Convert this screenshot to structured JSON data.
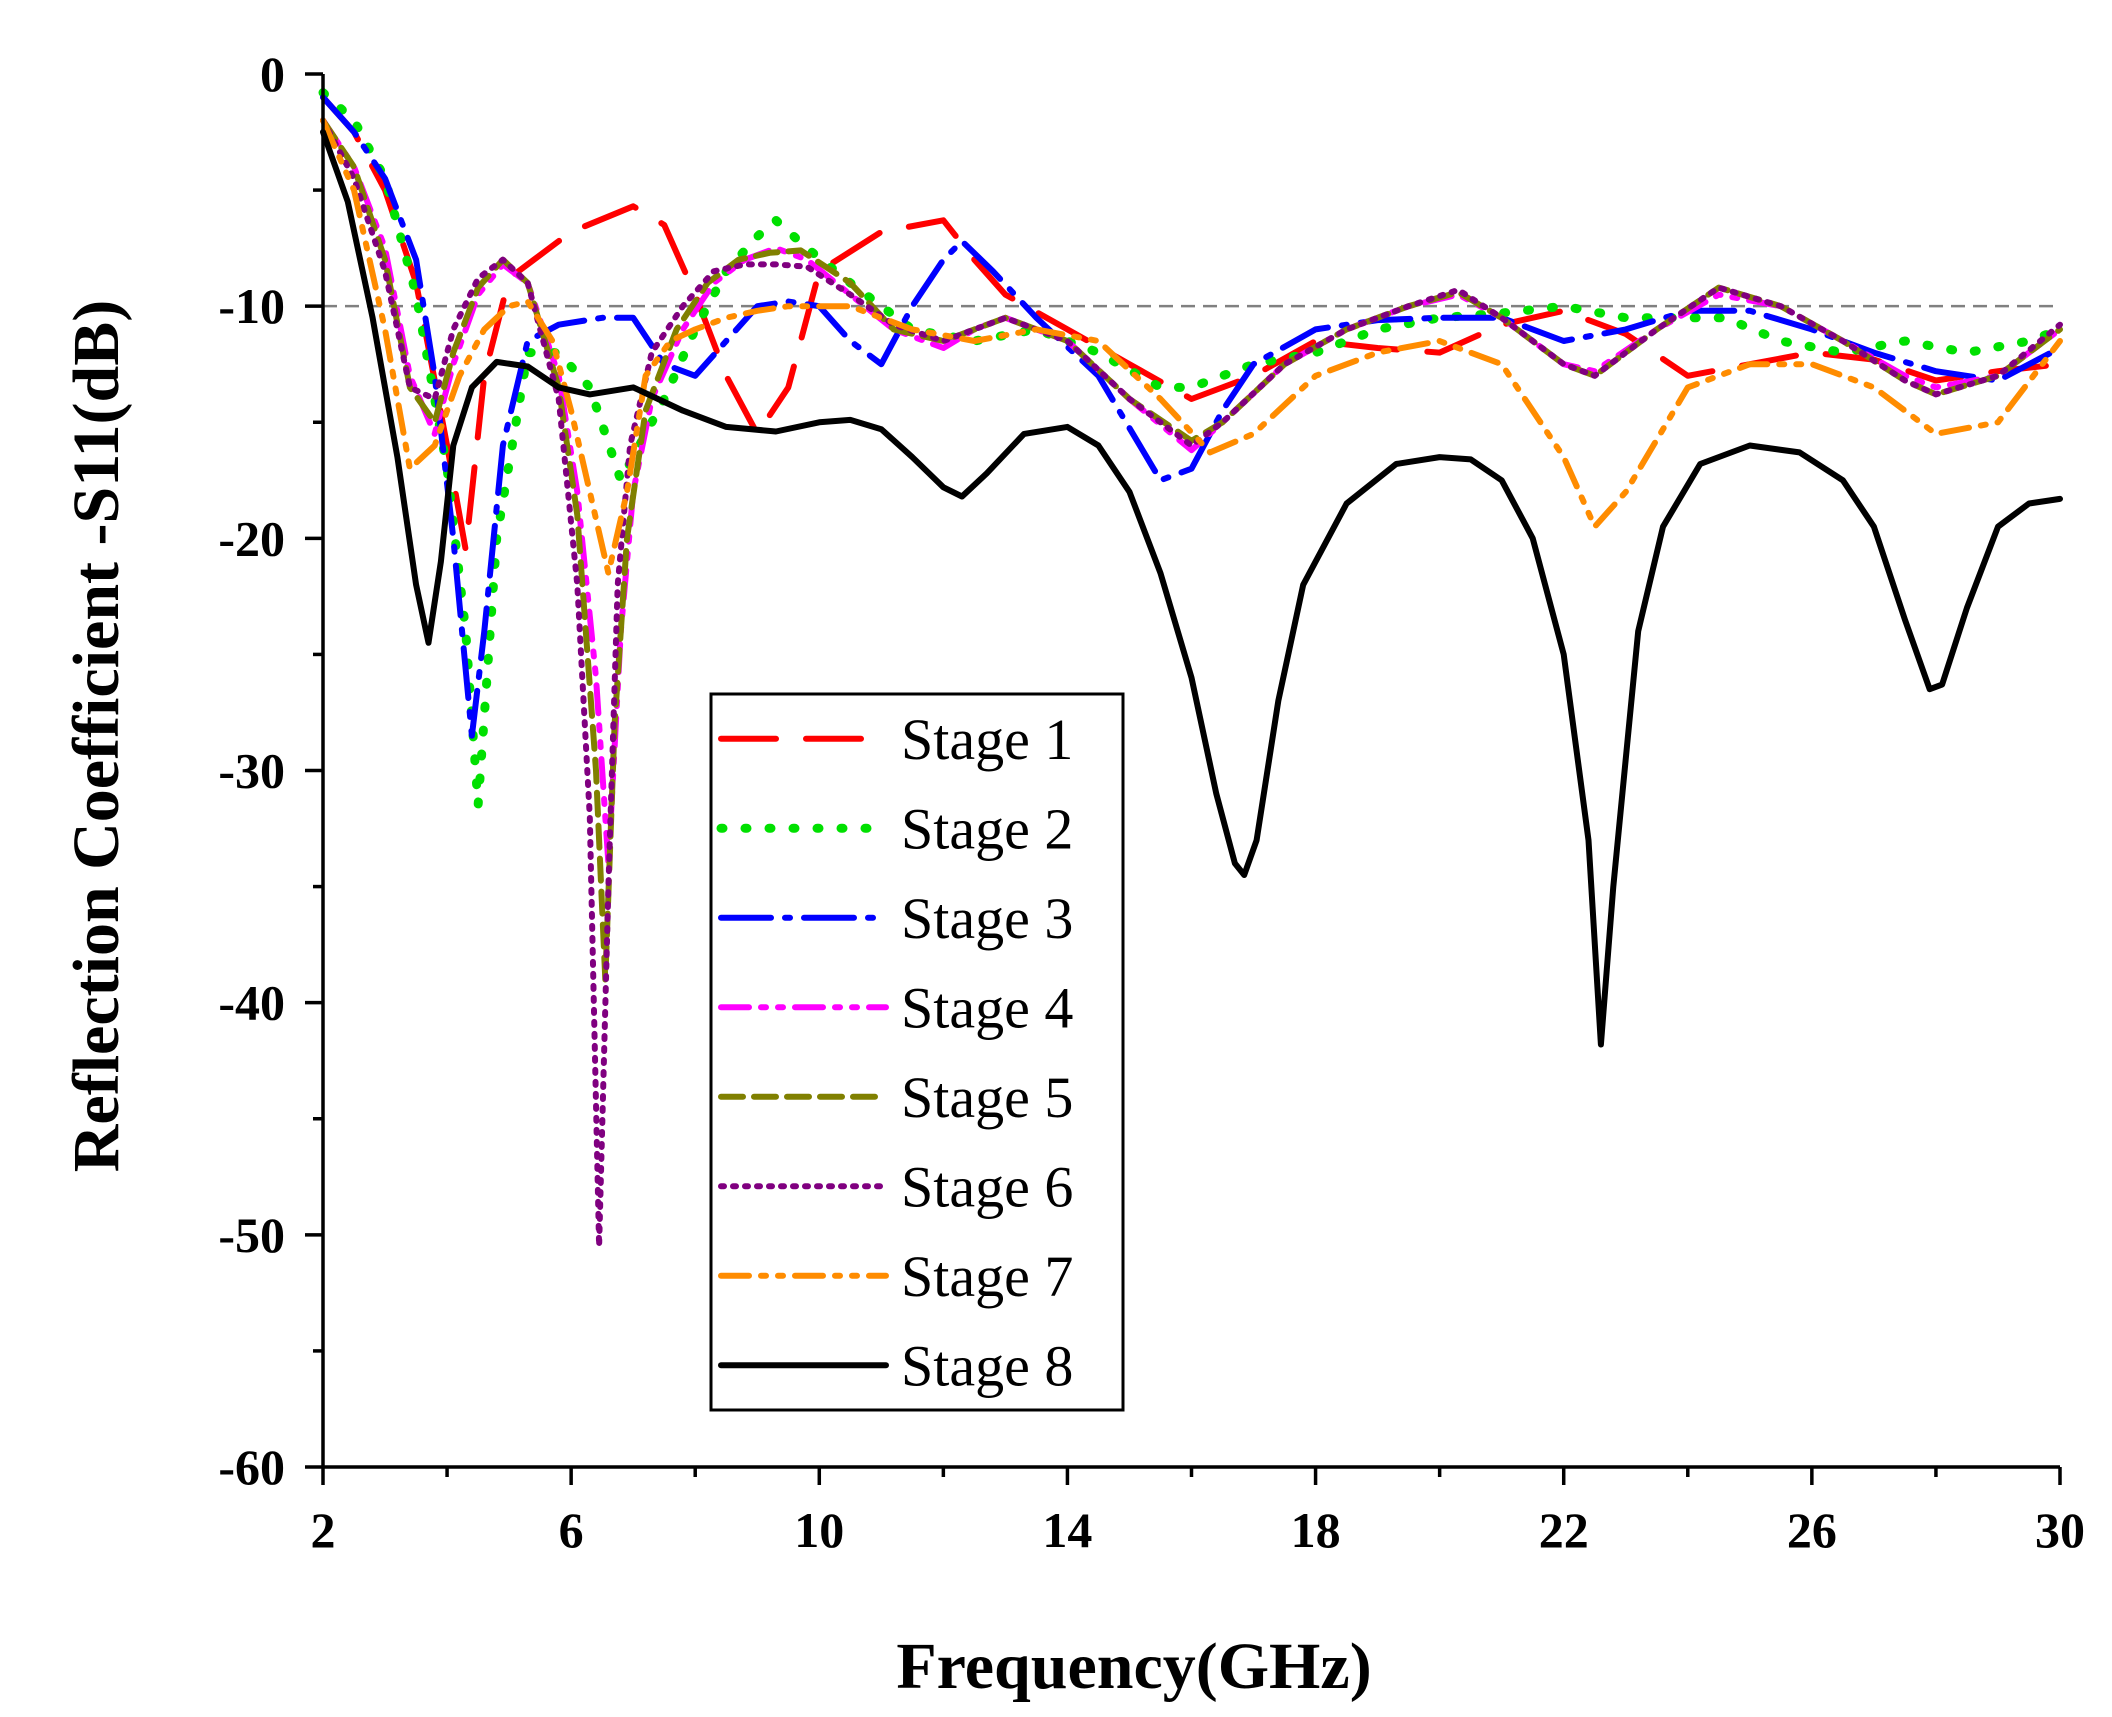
{
  "chart_data": {
    "type": "line",
    "title": "",
    "xlabel": "Frequency(GHz)",
    "ylabel": "Reflection Coefficient -S11(dB)",
    "xlim": [
      2,
      30
    ],
    "ylim": [
      -60,
      0
    ],
    "xticks": [
      2,
      6,
      10,
      14,
      18,
      22,
      26,
      30
    ],
    "yticks": [
      0,
      -10,
      -20,
      -30,
      -40,
      -50,
      -60
    ],
    "xtick_labels": [
      "2",
      "6",
      "10",
      "14",
      "18",
      "22",
      "26",
      "30"
    ],
    "ytick_labels": [
      "0",
      "-10",
      "-20",
      "-30",
      "-40",
      "-50",
      "-60"
    ],
    "reference_line": {
      "y": -10,
      "style": "dashed",
      "color": "#808080"
    },
    "legend_position": "center",
    "series": [
      {
        "name": "Stage 1",
        "color": "#ff0000",
        "dash": "long-dash",
        "x": [
          2,
          2.5,
          3,
          3.5,
          4,
          4.3,
          4.6,
          5,
          5.4,
          6,
          7,
          7.5,
          8,
          8.5,
          9,
          9.5,
          10,
          11,
          12,
          12.5,
          13,
          14,
          15,
          16,
          17,
          18,
          19,
          20,
          21,
          22,
          23,
          24,
          25,
          26,
          27,
          28,
          29,
          30
        ],
        "y": [
          -1,
          -2.5,
          -5,
          -9,
          -16,
          -20.5,
          -13,
          -8.8,
          -8,
          -6.8,
          -5.7,
          -6.5,
          -9.5,
          -13,
          -15.5,
          -13.5,
          -8.5,
          -6.8,
          -6.3,
          -8,
          -9.5,
          -11,
          -12.5,
          -14,
          -13,
          -11.5,
          -11.8,
          -12,
          -10.8,
          -10.2,
          -11.2,
          -13,
          -12.5,
          -12,
          -12.3,
          -13.2,
          -12.8,
          -12.5
        ]
      },
      {
        "name": "Stage 2",
        "color": "#00e000",
        "dash": "dot",
        "x": [
          2,
          2.5,
          3,
          3.5,
          4,
          4.3,
          4.5,
          4.8,
          5.3,
          5.8,
          6.3,
          6.8,
          7.5,
          8,
          8.5,
          9,
          9.3,
          9.8,
          10.5,
          11.5,
          12.5,
          13.5,
          14.5,
          15.5,
          16,
          17,
          18,
          19,
          20,
          21,
          22,
          23,
          24,
          24.6,
          25.5,
          26.5,
          27.5,
          28.5,
          29.5,
          30
        ],
        "y": [
          -0.8,
          -2,
          -4.5,
          -9.5,
          -17,
          -24,
          -31.5,
          -20,
          -12,
          -12,
          -13.5,
          -17.5,
          -14,
          -11,
          -8.5,
          -7,
          -6.3,
          -7.5,
          -9,
          -11,
          -11.5,
          -11,
          -12,
          -13.5,
          -13.5,
          -12.5,
          -12,
          -11,
          -10.5,
          -10.3,
          -10,
          -10.5,
          -10.5,
          -10.5,
          -11.5,
          -12,
          -11.5,
          -12,
          -11.5,
          -11
        ]
      },
      {
        "name": "Stage 3",
        "color": "#0000ff",
        "dash": "dash-dot",
        "x": [
          2,
          2.5,
          3,
          3.5,
          3.8,
          4.1,
          4.4,
          4.6,
          4.9,
          5.3,
          5.8,
          6.5,
          7,
          7.5,
          8,
          8.5,
          9,
          9.5,
          10,
          10.5,
          11,
          11.5,
          12,
          12.3,
          12.8,
          13.5,
          14.5,
          15.5,
          16,
          16.5,
          17,
          18,
          19,
          20,
          21,
          22,
          23,
          24,
          25,
          26,
          27,
          28,
          29,
          30
        ],
        "y": [
          -1,
          -2.5,
          -4.5,
          -8,
          -13,
          -20,
          -28.5,
          -24,
          -16,
          -11.5,
          -10.8,
          -10.5,
          -10.5,
          -12.5,
          -13,
          -11.5,
          -10,
          -9.8,
          -10,
          -11.5,
          -12.5,
          -10,
          -8,
          -7.2,
          -8.5,
          -10.5,
          -13,
          -17.5,
          -17,
          -14.5,
          -12.5,
          -11,
          -10.6,
          -10.5,
          -10.5,
          -11.5,
          -11,
          -10.2,
          -10.2,
          -11,
          -12,
          -12.8,
          -13.2,
          -11.8
        ]
      },
      {
        "name": "Stage 4",
        "color": "#ff00ff",
        "dash": "dash-dot-dot",
        "x": [
          2,
          2.5,
          3,
          3.4,
          3.8,
          4.1,
          4.5,
          4.9,
          5.3,
          5.8,
          6.1,
          6.4,
          6.6,
          6.8,
          7,
          7.3,
          7.8,
          8.3,
          8.8,
          9.3,
          9.8,
          10.5,
          11.2,
          12,
          12.5,
          13,
          14,
          15,
          16,
          16.5,
          17.5,
          18.5,
          19.5,
          20.3,
          21,
          22,
          22.5,
          23.5,
          24.5,
          25.5,
          26.5,
          27.5,
          28,
          29,
          30
        ],
        "y": [
          -2,
          -4,
          -7.5,
          -13,
          -15.5,
          -12.5,
          -9.5,
          -8.2,
          -9,
          -13,
          -18,
          -26,
          -34,
          -24,
          -18,
          -14,
          -11,
          -9,
          -8,
          -7.5,
          -8,
          -9.5,
          -11,
          -11.8,
          -11,
          -10.5,
          -11.5,
          -14,
          -16.2,
          -15,
          -12.5,
          -11,
          -10,
          -9.5,
          -10.5,
          -12.5,
          -12.8,
          -11,
          -9.5,
          -10,
          -11.5,
          -13,
          -13.5,
          -13,
          -11
        ]
      },
      {
        "name": "Stage 5",
        "color": "#808000",
        "dash": "dash",
        "x": [
          2,
          2.5,
          3,
          3.4,
          3.8,
          4.1,
          4.5,
          4.9,
          5.3,
          5.8,
          6.1,
          6.4,
          6.55,
          6.7,
          6.9,
          7.2,
          7.7,
          8.2,
          8.7,
          9.2,
          9.7,
          10.5,
          11.2,
          12,
          12.5,
          13,
          14,
          15,
          16,
          16.5,
          17.5,
          18.5,
          19.5,
          20.3,
          21,
          22,
          22.5,
          23.5,
          24.5,
          25.5,
          26.5,
          27.5,
          28,
          29,
          30
        ],
        "y": [
          -2,
          -4,
          -8,
          -13.5,
          -15,
          -12,
          -9.2,
          -8,
          -9,
          -13.5,
          -19,
          -30,
          -39,
          -28,
          -20,
          -14.5,
          -11,
          -9,
          -8,
          -7.7,
          -7.6,
          -9,
          -11,
          -11.5,
          -11,
          -10.5,
          -11.5,
          -14,
          -15.8,
          -15,
          -12.5,
          -11,
          -10,
          -9.4,
          -10.5,
          -12.5,
          -13,
          -11,
          -9.2,
          -10,
          -11.5,
          -13.2,
          -13.8,
          -13,
          -11
        ]
      },
      {
        "name": "Stage 6",
        "color": "#800080",
        "dash": "dense-dot",
        "x": [
          2,
          2.5,
          3,
          3.4,
          3.8,
          4.1,
          4.5,
          4.9,
          5.3,
          5.8,
          6.1,
          6.3,
          6.45,
          6.6,
          6.75,
          6.95,
          7.3,
          7.8,
          8.3,
          8.8,
          9.3,
          9.8,
          10.5,
          11.2,
          12,
          12.5,
          13,
          14,
          15,
          16,
          16.5,
          17.5,
          18.5,
          19.5,
          20.3,
          21,
          22,
          22.5,
          23.5,
          24.5,
          25.5,
          26.5,
          27.5,
          28,
          29,
          30
        ],
        "y": [
          -2,
          -4.5,
          -8.5,
          -13.5,
          -14,
          -11,
          -8.8,
          -8,
          -9,
          -14,
          -22,
          -32,
          -50.5,
          -35,
          -22,
          -16,
          -12,
          -10,
          -8.5,
          -8.2,
          -8.2,
          -8.3,
          -9.5,
          -10.8,
          -11.5,
          -11,
          -10.5,
          -11.5,
          -14,
          -16,
          -15,
          -12.5,
          -11,
          -10,
          -9.3,
          -10.5,
          -12.5,
          -13,
          -11,
          -9.2,
          -10,
          -11.5,
          -13.2,
          -13.8,
          -13,
          -10.8
        ]
      },
      {
        "name": "Stage 7",
        "color": "#ff8c00",
        "dash": "dash-dot-dot",
        "x": [
          2,
          2.5,
          3,
          3.4,
          3.8,
          4.2,
          4.6,
          5,
          5.3,
          5.7,
          6,
          6.3,
          6.6,
          6.9,
          7.2,
          7.6,
          8,
          8.5,
          9,
          9.5,
          10.5,
          11.5,
          12.5,
          13.5,
          14.5,
          15.5,
          16.3,
          17,
          18,
          19,
          20,
          21,
          22,
          22.5,
          23,
          24,
          25,
          26,
          27,
          28,
          29,
          30
        ],
        "y": [
          -2,
          -5,
          -11,
          -17,
          -16,
          -13,
          -11,
          -10,
          -9.8,
          -11.5,
          -14.5,
          -18,
          -21.5,
          -18,
          -13,
          -11.5,
          -11,
          -10.5,
          -10.2,
          -10,
          -10,
          -11,
          -11.5,
          -11,
          -11.5,
          -14,
          -16.3,
          -15.5,
          -13,
          -12,
          -11.5,
          -12.5,
          -16.5,
          -19.5,
          -18,
          -13.5,
          -12.5,
          -12.5,
          -13.5,
          -15.5,
          -15,
          -11.5
        ]
      },
      {
        "name": "Stage 8",
        "color": "#000000",
        "dash": "solid",
        "x": [
          2,
          2.4,
          2.8,
          3.2,
          3.5,
          3.7,
          3.9,
          4.1,
          4.4,
          4.8,
          5.3,
          5.8,
          6.3,
          7,
          7.8,
          8.5,
          9.3,
          10,
          10.5,
          11,
          11.5,
          12,
          12.3,
          12.7,
          13.3,
          14,
          14.5,
          15,
          15.5,
          16,
          16.4,
          16.7,
          16.85,
          17.05,
          17.4,
          17.8,
          18.5,
          19.3,
          20,
          20.5,
          21,
          21.5,
          22,
          22.4,
          22.6,
          22.8,
          23.2,
          23.6,
          24.2,
          25,
          25.8,
          26.5,
          27,
          27.5,
          27.9,
          28.1,
          28.5,
          29,
          29.5,
          30
        ],
        "y": [
          -2.5,
          -5.5,
          -10.5,
          -16.5,
          -22,
          -24.5,
          -21,
          -16,
          -13.5,
          -12.4,
          -12.6,
          -13.5,
          -13.8,
          -13.5,
          -14.5,
          -15.2,
          -15.4,
          -15,
          -14.9,
          -15.3,
          -16.5,
          -17.8,
          -18.2,
          -17.2,
          -15.5,
          -15.2,
          -16,
          -18,
          -21.5,
          -26,
          -31,
          -34,
          -34.5,
          -33,
          -27,
          -22,
          -18.5,
          -16.8,
          -16.5,
          -16.6,
          -17.5,
          -20,
          -25,
          -33,
          -41.8,
          -35,
          -24,
          -19.5,
          -16.8,
          -16,
          -16.3,
          -17.5,
          -19.5,
          -23.5,
          -26.5,
          -26.3,
          -23,
          -19.5,
          -18.5,
          -18.3
        ]
      }
    ]
  }
}
